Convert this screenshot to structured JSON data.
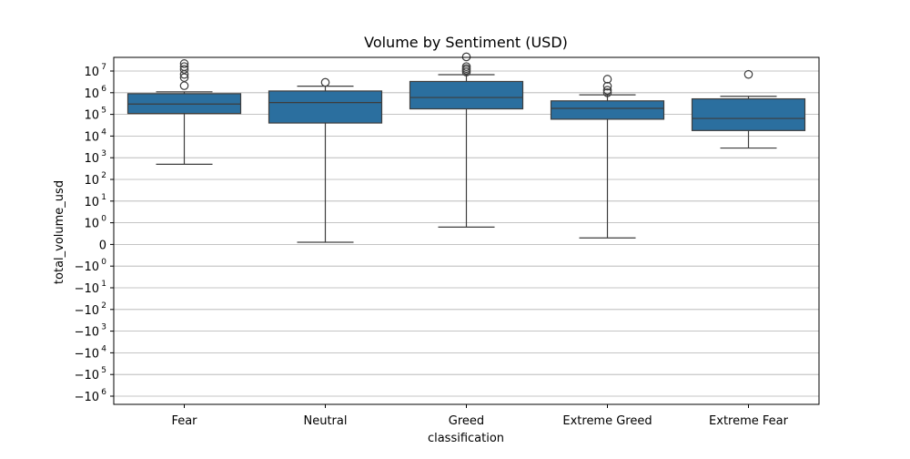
{
  "chart_data": {
    "type": "box",
    "title": "Volume by Sentiment (USD)",
    "xlabel": "classification",
    "ylabel": "total_volume_usd",
    "y_scale": "symlog",
    "y_ticks": [
      {
        "value": 10000000,
        "label": "10^7",
        "base": "10",
        "exp": "7"
      },
      {
        "value": 1000000,
        "label": "10^6",
        "base": "10",
        "exp": "6"
      },
      {
        "value": 100000,
        "label": "10^5",
        "base": "10",
        "exp": "5"
      },
      {
        "value": 10000,
        "label": "10^4",
        "base": "10",
        "exp": "4"
      },
      {
        "value": 1000,
        "label": "10^3",
        "base": "10",
        "exp": "3"
      },
      {
        "value": 100,
        "label": "10^2",
        "base": "10",
        "exp": "2"
      },
      {
        "value": 10,
        "label": "10^1",
        "base": "10",
        "exp": "1"
      },
      {
        "value": 1,
        "label": "10^0",
        "base": "10",
        "exp": "0"
      },
      {
        "value": 0,
        "label": "0",
        "base": "0",
        "exp": ""
      },
      {
        "value": -1,
        "label": "−10^0",
        "base": "−10",
        "exp": "0"
      },
      {
        "value": -10,
        "label": "−10^1",
        "base": "−10",
        "exp": "1"
      },
      {
        "value": -100,
        "label": "−10^2",
        "base": "−10",
        "exp": "2"
      },
      {
        "value": -1000,
        "label": "−10^3",
        "base": "−10",
        "exp": "3"
      },
      {
        "value": -10000,
        "label": "−10^4",
        "base": "−10",
        "exp": "4"
      },
      {
        "value": -100000,
        "label": "−10^5",
        "base": "−10",
        "exp": "5"
      },
      {
        "value": -1000000,
        "label": "−10^6",
        "base": "−10",
        "exp": "6"
      }
    ],
    "grid": true,
    "box_color": "#2b6f9f",
    "categories": [
      "Fear",
      "Neutral",
      "Greed",
      "Extreme Greed",
      "Extreme Fear"
    ],
    "boxes": [
      {
        "category": "Fear",
        "whisker_low": 500,
        "q1": 110000,
        "median": 300000,
        "q3": 900000,
        "whisker_high": 1100000,
        "outliers": [
          2100000,
          5000000,
          7000000,
          12000000,
          16000000,
          22000000
        ]
      },
      {
        "category": "Neutral",
        "whisker_low": 0.1,
        "q1": 40000,
        "median": 350000,
        "q3": 1200000,
        "whisker_high": 2000000,
        "outliers": [
          3000000
        ]
      },
      {
        "category": "Greed",
        "whisker_low": 0.8,
        "q1": 180000,
        "median": 600000,
        "q3": 3300000,
        "whisker_high": 6800000,
        "outliers": [
          9000000,
          11000000,
          13000000,
          16000000,
          45000000
        ]
      },
      {
        "category": "Extreme Greed",
        "whisker_low": 0.3,
        "q1": 60000,
        "median": 190000,
        "q3": 420000,
        "whisker_high": 800000,
        "outliers": [
          1000000,
          1300000,
          2000000,
          4200000
        ]
      },
      {
        "category": "Extreme Fear",
        "whisker_low": 2800,
        "q1": 18000,
        "median": 65000,
        "q3": 520000,
        "whisker_high": 680000,
        "outliers": [
          7000000
        ]
      }
    ]
  }
}
